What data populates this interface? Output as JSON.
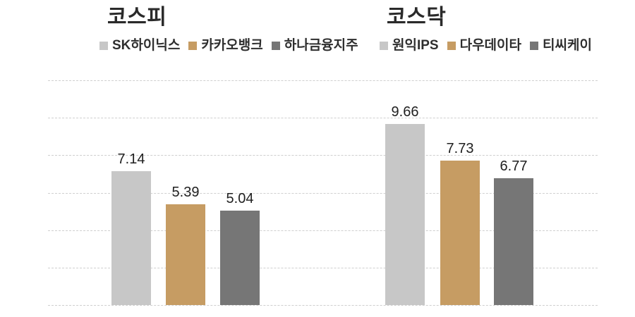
{
  "colors": {
    "background": "#ffffff",
    "gridline": "#cfcfcf",
    "title_text": "#2a2a2a",
    "legend_text": "#2e2e2e",
    "value_label_text": "#1f1f1f",
    "series_light_gray": "#c7c7c7",
    "series_tan": "#c69c63",
    "series_dark_gray": "#767676"
  },
  "chart_data": [
    {
      "type": "bar",
      "title": "코스피",
      "categories": [
        "SK하이닉스",
        "카카오뱅크",
        "하나금융지주"
      ],
      "values": [
        7.14,
        5.39,
        5.04
      ],
      "value_labels": [
        "7.14",
        "5.39",
        "5.04"
      ],
      "bar_colors": [
        "#c7c7c7",
        "#c69c63",
        "#767676"
      ],
      "xlabel": "",
      "ylabel": "",
      "ylim": [
        0,
        12
      ],
      "gridline_interval": 2,
      "grid": true,
      "axis_tick_labels_visible": false,
      "legend_position": "top"
    },
    {
      "type": "bar",
      "title": "코스닥",
      "categories": [
        "원익IPS",
        "다우데이타",
        "티씨케이"
      ],
      "values": [
        9.66,
        7.73,
        6.77
      ],
      "value_labels": [
        "9.66",
        "7.73",
        "6.77"
      ],
      "bar_colors": [
        "#c7c7c7",
        "#c69c63",
        "#767676"
      ],
      "xlabel": "",
      "ylabel": "",
      "ylim": [
        0,
        12
      ],
      "gridline_interval": 2,
      "grid": true,
      "axis_tick_labels_visible": false,
      "legend_position": "top"
    }
  ]
}
